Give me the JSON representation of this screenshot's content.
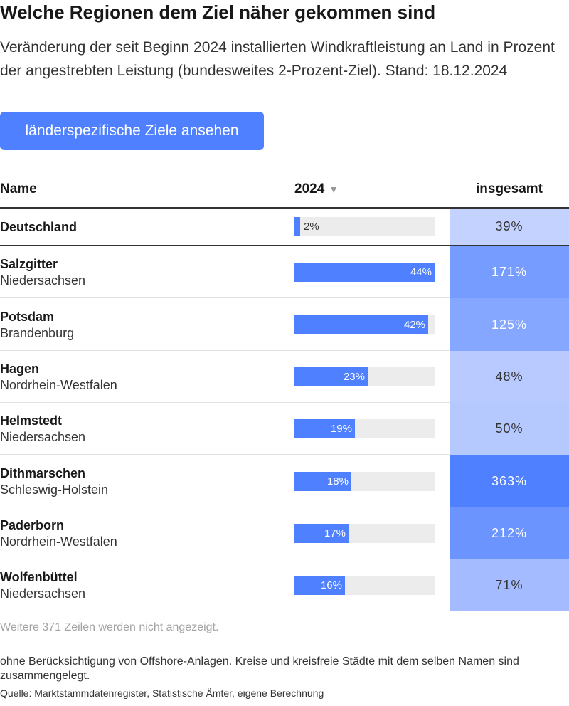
{
  "title": "Welche Regionen dem Ziel näher gekommen sind",
  "description": "Veränderung der seit Beginn 2024 installierten Windkraftleistung an Land in Prozent der angestrebten Leistung (bundesweites 2-Prozent-Ziel). Stand: 18.12.2024",
  "button_label": "länderspezifische Ziele ansehen",
  "table": {
    "headers": {
      "name": "Name",
      "year": "2024",
      "sort_icon": "▼",
      "total": "insgesamt"
    },
    "colors": {
      "bar": "#4f80ff",
      "track": "#ececec",
      "total_scale_low": "#c3d2ff",
      "total_scale_high": "#4f80ff"
    },
    "rows": [
      {
        "name": "Deutschland",
        "region": "",
        "value_2024": 2,
        "label_2024": "2%",
        "total": 39,
        "total_label": "39%"
      },
      {
        "name": "Salzgitter",
        "region": "Niedersachsen",
        "value_2024": 44,
        "label_2024": "44%",
        "total": 171,
        "total_label": "171%"
      },
      {
        "name": "Potsdam",
        "region": "Brandenburg",
        "value_2024": 42,
        "label_2024": "42%",
        "total": 125,
        "total_label": "125%"
      },
      {
        "name": "Hagen",
        "region": "Nordrhein-Westfalen",
        "value_2024": 23,
        "label_2024": "23%",
        "total": 48,
        "total_label": "48%"
      },
      {
        "name": "Helmstedt",
        "region": "Niedersachsen",
        "value_2024": 19,
        "label_2024": "19%",
        "total": 50,
        "total_label": "50%"
      },
      {
        "name": "Dithmarschen",
        "region": "Schleswig-Holstein",
        "value_2024": 18,
        "label_2024": "18%",
        "total": 363,
        "total_label": "363%"
      },
      {
        "name": "Paderborn",
        "region": "Nordrhein-Westfalen",
        "value_2024": 17,
        "label_2024": "17%",
        "total": 212,
        "total_label": "212%"
      },
      {
        "name": "Wolfenbüttel",
        "region": "Niedersachsen",
        "value_2024": 16,
        "label_2024": "16%",
        "total": 71,
        "total_label": "71%"
      }
    ]
  },
  "more_rows": "Weitere 371 Zeilen werden nicht angezeigt.",
  "note": "ohne Berücksichtigung von Offshore-Anlagen. Kreise und kreisfreie Städte mit dem selben Namen sind zusammengelegt.",
  "source": "Quelle: Marktstammdatenregister, Statistische Ämter, eigene Berechnung"
}
